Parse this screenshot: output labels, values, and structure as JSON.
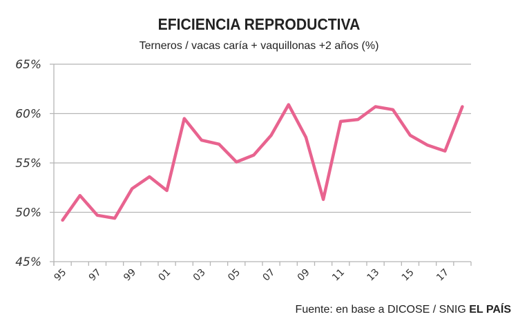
{
  "chart_data": {
    "type": "line",
    "title": "EFICIENCIA REPRODUCTIVA",
    "subtitle": "Terneros / vacas caría + vaquillonas +2 años (%)",
    "xlabel": "",
    "ylabel": "",
    "ylim": [
      45,
      65
    ],
    "yticks": [
      "45%",
      "50%",
      "55%",
      "60%",
      "65%"
    ],
    "grid": true,
    "legend": null,
    "categories": [
      "95",
      "96",
      "97",
      "98",
      "99",
      "00",
      "01",
      "02",
      "03",
      "04",
      "05",
      "06",
      "07",
      "08",
      "09",
      "10",
      "11",
      "12",
      "13",
      "14",
      "15",
      "16",
      "17",
      "18"
    ],
    "xtick_labels": [
      "95",
      "97",
      "99",
      "01",
      "03",
      "05",
      "07",
      "09",
      "11",
      "13",
      "15",
      "17"
    ],
    "series": [
      {
        "name": "Eficiencia reproductiva",
        "color": "#E8638F",
        "values": [
          49.2,
          51.7,
          49.7,
          49.4,
          52.4,
          53.6,
          52.2,
          59.5,
          57.3,
          56.9,
          55.1,
          55.8,
          57.8,
          60.9,
          57.6,
          51.3,
          59.2,
          59.4,
          60.7,
          60.4,
          57.8,
          56.8,
          56.2,
          60.7
        ]
      }
    ]
  },
  "header": {
    "title": "EFICIENCIA REPRODUCTIVA",
    "subtitle": "Terneros / vacas caría + vaquillonas +2 años (%)"
  },
  "footer": {
    "source": "Fuente: en base a DICOSE / SNIG",
    "brand": "EL PAÍS"
  }
}
